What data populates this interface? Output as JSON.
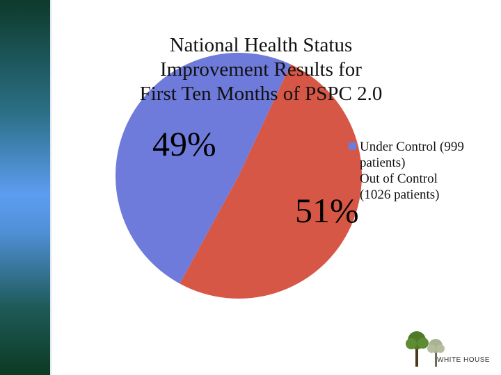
{
  "chart_data": {
    "type": "pie",
    "title": "National Health Status\nImprovement Results for\nFirst Ten Months of PSPC 2.0",
    "slices": [
      {
        "label": "Under Control (999 patients)",
        "value": 49,
        "patients": 999,
        "display": "49%",
        "color": "#6f7bdb"
      },
      {
        "label": "Out of Control (1026 patients)",
        "value": 51,
        "patients": 1026,
        "display": "51%",
        "color": "#d65745"
      }
    ],
    "legend_placement": "right"
  },
  "logo": {
    "text": "WHITE HOUSE"
  }
}
